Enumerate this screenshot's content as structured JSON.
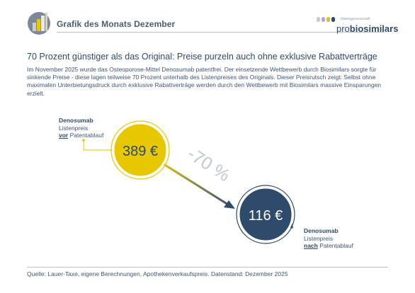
{
  "header": {
    "title": "Grafik des Monats Dezember"
  },
  "brand": {
    "tagline": "Arbeitsgemeinschaft",
    "pro": "pro",
    "name": "biosimilars",
    "colors": [
      "#c9c6cf",
      "#b3a9d0",
      "#e0c21a",
      "#2d4a6a"
    ]
  },
  "headline": "70 Prozent günstiger als das Original: Preise purzeln auch ohne exklusive Rabattverträge",
  "intro": "Im November 2025 wurde das Osteoporose-Mittel Denosumab patentfrei. Der einsetzende Wettbewerb durch Biosimilars sorgte für sinkende Preise - diese lagen teilweise 70 Prozent unterhalb des Listenpreises des Originals. Dieser Preisrutsch zeigt: Selbst ohne maximalen Unterbietungsdruck durch exklusive Rabattverträge werden durch den Wettbewerb mit Biosimilars massive Einsparungen erzielt.",
  "before": {
    "drug": "Denosumab",
    "line2": "Listenpreis",
    "emph": "vor",
    "rest": " Patentablauf",
    "price": "389 €",
    "color": "#e6c700"
  },
  "after": {
    "drug": "Denosumab",
    "line2": "Listenpreis",
    "emph": "nach",
    "rest": " Patentablauf",
    "price": "116 €",
    "color": "#2e4b6c"
  },
  "change": {
    "label": "-70 %",
    "color": "#c3c9d0"
  },
  "footer": "Quelle: Lauer-Taxe, eigene Berechnungen, Apothekenverkaufspreis. Datenstand: Dezember 2025"
}
